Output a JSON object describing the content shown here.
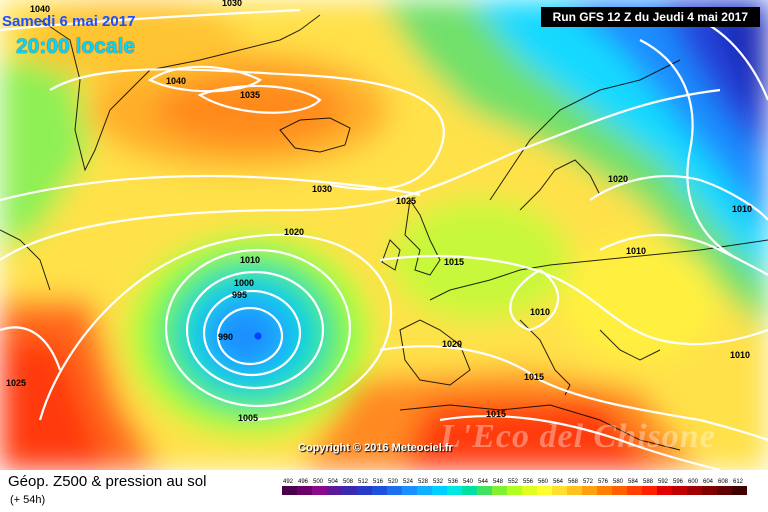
{
  "header": {
    "date": "Samedi 6 mai 2017",
    "time": "20:00 locale",
    "run": "Run GFS 12 Z du Jeudi 4 mai 2017"
  },
  "footer": {
    "title": "Géop. Z500 & pression au sol",
    "subtitle": "(+ 54h)",
    "copyright": "Copyright © 2016 Meteociel.fr",
    "watermark": "L'Eco del Chisone"
  },
  "pressure_labels": [
    "1040",
    "1030",
    "1040",
    "1035",
    "1030",
    "1025",
    "1020",
    "1020",
    "1010",
    "1010",
    "1000",
    "995",
    "990",
    "1015",
    "1010",
    "1010",
    "1020",
    "1025",
    "1005",
    "1015",
    "1015",
    "1010"
  ],
  "scale": {
    "labels": [
      "492",
      "496",
      "500",
      "504",
      "508",
      "512",
      "516",
      "520",
      "524",
      "528",
      "532",
      "536",
      "540",
      "544",
      "548",
      "552",
      "556",
      "560",
      "564",
      "568",
      "572",
      "576",
      "580",
      "584",
      "588",
      "592",
      "596",
      "600",
      "604",
      "608",
      "612"
    ],
    "colors": [
      "#4a004a",
      "#6a006a",
      "#8a0a8a",
      "#5a1a9a",
      "#3a2ab0",
      "#2a3ac8",
      "#2050e0",
      "#1c70f0",
      "#1890ff",
      "#10b0ff",
      "#00d0ff",
      "#00e8e0",
      "#00e0a0",
      "#40e060",
      "#80f030",
      "#b0ff20",
      "#e0ff20",
      "#ffff30",
      "#ffe030",
      "#ffc020",
      "#ffa010",
      "#ff8000",
      "#ff6000",
      "#ff4000",
      "#ff2000",
      "#e00000",
      "#c00000",
      "#a00000",
      "#800000",
      "#600000",
      "#400000"
    ]
  },
  "colors": {
    "accent_date": "#1e4fff",
    "accent_time": "#00d8ff",
    "isobar": "#ffffff",
    "coast": "#000000"
  }
}
